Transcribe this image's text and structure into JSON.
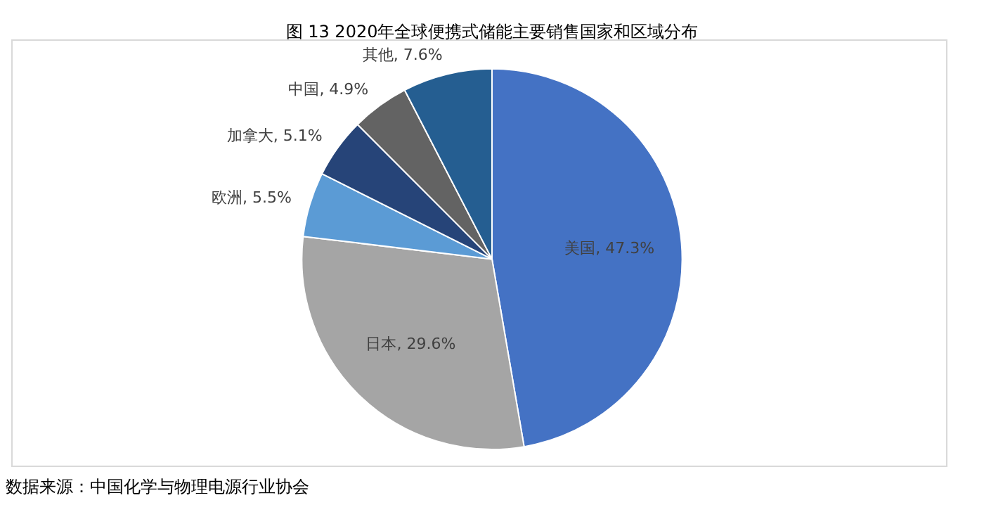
{
  "chart_data": {
    "type": "pie",
    "title": "图 13 2020年全球便携式储能主要销售国家和区域分布",
    "categories": [
      "美国",
      "日本",
      "欧洲",
      "加拿大",
      "中国",
      "其他"
    ],
    "values": [
      47.3,
      29.6,
      5.5,
      5.1,
      4.9,
      7.6
    ],
    "colors": [
      "#4472c4",
      "#a5a5a5",
      "#5b9bd5",
      "#264478",
      "#636363",
      "#255e91"
    ],
    "value_labels": [
      "47.3%",
      "29.6%",
      "5.5%",
      "5.1%",
      "4.9%",
      "7.6%"
    ],
    "legend": false,
    "annotations": [
      "数据来源：中国化学与物理电源行业协会"
    ]
  }
}
